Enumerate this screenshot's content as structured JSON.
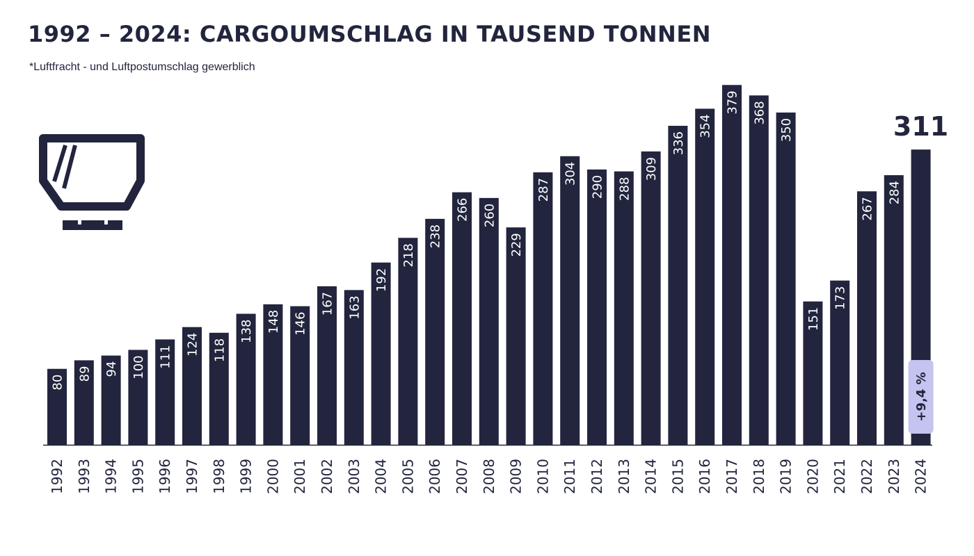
{
  "page": {
    "title": "1992 – 2024: CARGOUMSCHLAG IN TAUSEND TONNEN",
    "subtitle": "*Luftfracht - und Luftpostumschlag gewerblich",
    "icon": "cargo-container-icon"
  },
  "colors": {
    "bar": "#22253d",
    "bar_label": "#ffffff",
    "badge_bg": "#c5c3f0",
    "badge_text": "#22253d",
    "axis": "#22253d"
  },
  "chart_data": {
    "type": "bar",
    "title": "1992 – 2024: CARGOUMSCHLAG IN TAUSEND TONNEN",
    "xlabel": "",
    "ylabel": "",
    "ylim": [
      0,
      400
    ],
    "grid": false,
    "categories": [
      "1992",
      "1993",
      "1994",
      "1995",
      "1996",
      "1997",
      "1998",
      "1999",
      "2000",
      "2001",
      "2002",
      "2003",
      "2004",
      "2005",
      "2006",
      "2007",
      "2008",
      "2009",
      "2010",
      "2011",
      "2012",
      "2013",
      "2014",
      "2015",
      "2016",
      "2017",
      "2018",
      "2019",
      "2020",
      "2021",
      "2022",
      "2023",
      "2024"
    ],
    "values": [
      80,
      89,
      94,
      100,
      111,
      124,
      118,
      138,
      148,
      146,
      167,
      163,
      192,
      218,
      238,
      266,
      260,
      229,
      287,
      304,
      290,
      288,
      309,
      336,
      354,
      379,
      368,
      350,
      151,
      173,
      267,
      284,
      311
    ],
    "data_labels": [
      "80",
      "89",
      "94",
      "100",
      "111",
      "124",
      "118",
      "138",
      "148",
      "146",
      "167",
      "163",
      "192",
      "218",
      "238",
      "266",
      "260",
      "229",
      "287",
      "304",
      "290",
      "288",
      "309",
      "336",
      "354",
      "379",
      "368",
      "350",
      "151",
      "173",
      "267",
      "284",
      ""
    ],
    "highlight": {
      "category": "2024",
      "value_label": "311",
      "change_label": "+9,4 %"
    }
  }
}
